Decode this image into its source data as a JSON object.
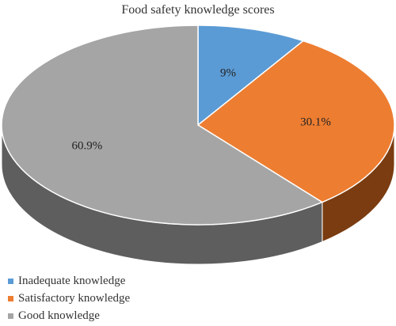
{
  "chart_data": {
    "type": "pie",
    "title": "Food safety knowledge scores",
    "slices": [
      {
        "label": "Inadequate knowledge",
        "value": 9,
        "display": "9%",
        "color": "#5b9bd5",
        "side_color": "#3a6d9c"
      },
      {
        "label": "Satisfactory knowledge",
        "value": 30.1,
        "display": "30.1%",
        "color": "#ed7d31",
        "side_color": "#7a3c10"
      },
      {
        "label": "Good knowledge",
        "value": 60.9,
        "display": "60.9%",
        "color": "#a5a5a5",
        "side_color": "#5e5e5e"
      }
    ],
    "legend_position": "bottom-left",
    "style": "3d"
  }
}
